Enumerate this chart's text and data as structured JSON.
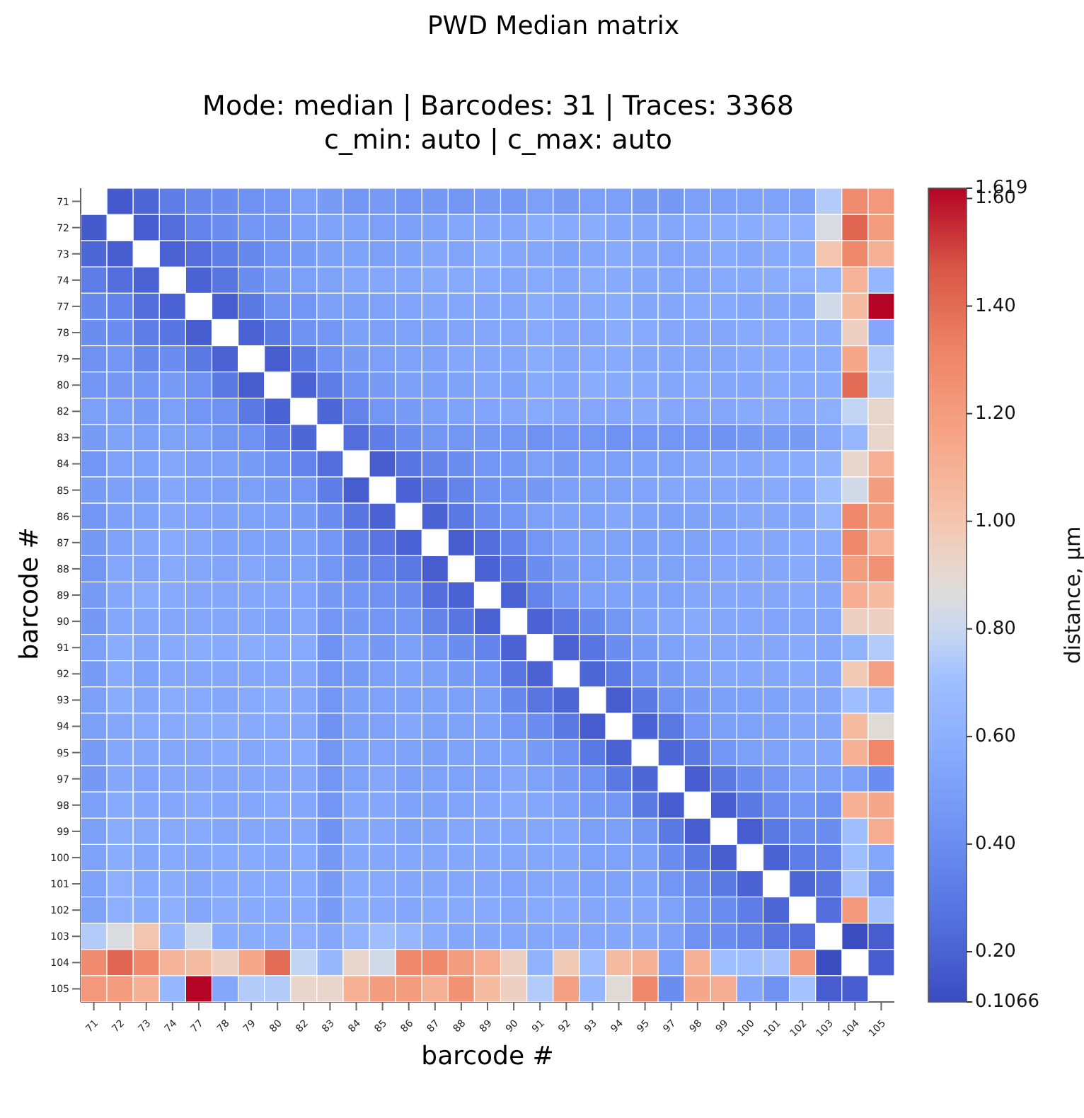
{
  "chart_data": {
    "type": "heatmap",
    "title": "PWD Median matrix",
    "subtitle": "Mode: median | Barcodes: 31 | Traces: 3368\nc_min: auto | c_max: auto",
    "xlabel": "barcode #",
    "ylabel": "barcode #",
    "clabel": "distance, µm",
    "categories": [
      "71",
      "72",
      "73",
      "74",
      "77",
      "78",
      "79",
      "80",
      "82",
      "83",
      "84",
      "85",
      "86",
      "87",
      "88",
      "89",
      "90",
      "91",
      "92",
      "93",
      "94",
      "95",
      "97",
      "98",
      "99",
      "100",
      "101",
      "102",
      "103",
      "104",
      "105"
    ],
    "y_categories": [
      "71",
      "72",
      "73",
      "74",
      "77",
      "78",
      "79",
      "80",
      "82",
      "83",
      "84",
      "85",
      "86",
      "87",
      "88",
      "89",
      "90",
      "91",
      "92",
      "93",
      "94",
      "95",
      "97",
      "98",
      "99",
      "100",
      "101",
      "102",
      "103",
      "104",
      "105"
    ],
    "clim": [
      0.1066,
      1.619
    ],
    "cticks": [
      {
        "value": 0.1066,
        "label": "0.1066"
      },
      {
        "value": 0.2,
        "label": "0.20"
      },
      {
        "value": 0.4,
        "label": "0.40"
      },
      {
        "value": 0.6,
        "label": "0.60"
      },
      {
        "value": 0.8,
        "label": "0.80"
      },
      {
        "value": 1.0,
        "label": "1.00"
      },
      {
        "value": 1.2,
        "label": "1.20"
      },
      {
        "value": 1.4,
        "label": "1.40"
      },
      {
        "value": 1.6,
        "label": "1.60"
      },
      {
        "value": 1.619,
        "label": "1.619"
      }
    ],
    "cells": [
      [
        null,
        0.17,
        0.22,
        0.32,
        0.38,
        0.4,
        0.42,
        0.45,
        0.5,
        0.48,
        0.45,
        0.48,
        0.45,
        0.47,
        0.45,
        0.48,
        0.47,
        0.5,
        0.48,
        0.5,
        0.5,
        0.48,
        0.47,
        0.5,
        0.5,
        0.52,
        0.52,
        0.52,
        0.75,
        1.28,
        1.22
      ],
      [
        0.17,
        null,
        0.18,
        0.25,
        0.35,
        0.4,
        0.45,
        0.47,
        0.5,
        0.52,
        0.52,
        0.5,
        0.5,
        0.52,
        0.55,
        0.55,
        0.55,
        0.58,
        0.57,
        0.58,
        0.55,
        0.55,
        0.55,
        0.57,
        0.58,
        0.58,
        0.6,
        0.6,
        0.85,
        1.42,
        1.2
      ],
      [
        0.22,
        0.18,
        null,
        0.2,
        0.25,
        0.32,
        0.38,
        0.45,
        0.48,
        0.5,
        0.52,
        0.5,
        0.52,
        0.55,
        0.53,
        0.58,
        0.55,
        0.55,
        0.52,
        0.55,
        0.57,
        0.55,
        0.53,
        0.55,
        0.57,
        0.55,
        0.57,
        0.58,
        1.0,
        1.3,
        1.1
      ],
      [
        0.32,
        0.25,
        0.2,
        null,
        0.2,
        0.28,
        0.4,
        0.48,
        0.5,
        0.52,
        0.55,
        0.55,
        0.55,
        0.57,
        0.57,
        0.57,
        0.55,
        0.57,
        0.55,
        0.58,
        0.57,
        0.55,
        0.55,
        0.55,
        0.57,
        0.57,
        0.58,
        0.6,
        0.65,
        1.08,
        0.65
      ],
      [
        0.38,
        0.35,
        0.25,
        0.2,
        null,
        0.18,
        0.3,
        0.42,
        0.45,
        0.5,
        0.5,
        0.52,
        0.53,
        0.55,
        0.55,
        0.55,
        0.55,
        0.58,
        0.55,
        0.57,
        0.58,
        0.55,
        0.55,
        0.57,
        0.57,
        0.55,
        0.55,
        0.55,
        0.82,
        1.05,
        1.619
      ],
      [
        0.4,
        0.4,
        0.32,
        0.28,
        0.18,
        null,
        0.2,
        0.3,
        0.42,
        0.45,
        0.5,
        0.5,
        0.52,
        0.52,
        0.53,
        0.55,
        0.55,
        0.57,
        0.55,
        0.55,
        0.58,
        0.57,
        0.55,
        0.55,
        0.55,
        0.57,
        0.57,
        0.58,
        0.58,
        0.95,
        0.55
      ],
      [
        0.42,
        0.45,
        0.38,
        0.4,
        0.3,
        0.2,
        null,
        0.18,
        0.3,
        0.42,
        0.48,
        0.5,
        0.52,
        0.52,
        0.55,
        0.55,
        0.55,
        0.58,
        0.55,
        0.57,
        0.57,
        0.55,
        0.55,
        0.55,
        0.55,
        0.57,
        0.57,
        0.57,
        0.58,
        1.15,
        0.75
      ],
      [
        0.45,
        0.47,
        0.45,
        0.48,
        0.42,
        0.3,
        0.18,
        null,
        0.2,
        0.32,
        0.42,
        0.48,
        0.5,
        0.5,
        0.52,
        0.55,
        0.52,
        0.57,
        0.55,
        0.58,
        0.57,
        0.57,
        0.55,
        0.57,
        0.55,
        0.55,
        0.57,
        0.57,
        0.58,
        1.4,
        0.75
      ],
      [
        0.5,
        0.5,
        0.48,
        0.5,
        0.45,
        0.42,
        0.3,
        0.2,
        null,
        0.22,
        0.35,
        0.45,
        0.48,
        0.5,
        0.52,
        0.53,
        0.55,
        0.57,
        0.55,
        0.55,
        0.55,
        0.57,
        0.55,
        0.55,
        0.55,
        0.57,
        0.57,
        0.57,
        0.6,
        0.78,
        0.92
      ],
      [
        0.48,
        0.52,
        0.5,
        0.52,
        0.5,
        0.45,
        0.42,
        0.32,
        0.22,
        null,
        0.25,
        0.32,
        0.4,
        0.45,
        0.45,
        0.47,
        0.45,
        0.42,
        0.45,
        0.45,
        0.42,
        0.45,
        0.45,
        0.45,
        0.43,
        0.47,
        0.48,
        0.48,
        0.55,
        0.65,
        0.92
      ],
      [
        0.45,
        0.52,
        0.52,
        0.55,
        0.5,
        0.5,
        0.48,
        0.42,
        0.35,
        0.25,
        null,
        0.18,
        0.28,
        0.35,
        0.4,
        0.45,
        0.47,
        0.5,
        0.48,
        0.5,
        0.5,
        0.52,
        0.52,
        0.55,
        0.55,
        0.55,
        0.57,
        0.58,
        0.62,
        0.92,
        1.1
      ],
      [
        0.48,
        0.5,
        0.5,
        0.55,
        0.52,
        0.5,
        0.5,
        0.48,
        0.45,
        0.32,
        0.18,
        null,
        0.2,
        0.28,
        0.35,
        0.42,
        0.45,
        0.47,
        0.5,
        0.52,
        0.52,
        0.53,
        0.55,
        0.55,
        0.55,
        0.55,
        0.57,
        0.57,
        0.7,
        0.82,
        1.2
      ],
      [
        0.45,
        0.5,
        0.52,
        0.55,
        0.53,
        0.52,
        0.52,
        0.5,
        0.48,
        0.4,
        0.28,
        0.2,
        null,
        0.2,
        0.3,
        0.4,
        0.45,
        0.5,
        0.52,
        0.52,
        0.55,
        0.52,
        0.5,
        0.52,
        0.52,
        0.55,
        0.55,
        0.55,
        0.65,
        1.3,
        1.2
      ],
      [
        0.47,
        0.52,
        0.55,
        0.57,
        0.55,
        0.52,
        0.52,
        0.5,
        0.5,
        0.45,
        0.35,
        0.28,
        0.2,
        null,
        0.18,
        0.25,
        0.35,
        0.45,
        0.5,
        0.52,
        0.52,
        0.5,
        0.52,
        0.52,
        0.53,
        0.55,
        0.55,
        0.57,
        0.58,
        1.3,
        1.1
      ],
      [
        0.45,
        0.55,
        0.53,
        0.57,
        0.55,
        0.53,
        0.55,
        0.52,
        0.52,
        0.45,
        0.4,
        0.35,
        0.3,
        0.18,
        null,
        0.2,
        0.28,
        0.4,
        0.48,
        0.5,
        0.52,
        0.52,
        0.52,
        0.53,
        0.55,
        0.55,
        0.55,
        0.57,
        0.55,
        1.2,
        1.25
      ],
      [
        0.48,
        0.55,
        0.58,
        0.57,
        0.55,
        0.55,
        0.55,
        0.55,
        0.53,
        0.47,
        0.45,
        0.42,
        0.4,
        0.25,
        0.2,
        null,
        0.2,
        0.35,
        0.45,
        0.5,
        0.52,
        0.52,
        0.52,
        0.55,
        0.55,
        0.55,
        0.55,
        0.57,
        0.55,
        1.12,
        1.05
      ],
      [
        0.47,
        0.55,
        0.55,
        0.55,
        0.55,
        0.55,
        0.55,
        0.52,
        0.55,
        0.45,
        0.47,
        0.45,
        0.45,
        0.35,
        0.28,
        0.2,
        null,
        0.2,
        0.28,
        0.38,
        0.45,
        0.52,
        0.55,
        0.57,
        0.55,
        0.55,
        0.53,
        0.55,
        0.55,
        0.95,
        0.95
      ],
      [
        0.5,
        0.58,
        0.55,
        0.57,
        0.58,
        0.57,
        0.58,
        0.57,
        0.57,
        0.42,
        0.5,
        0.47,
        0.5,
        0.45,
        0.4,
        0.35,
        0.2,
        null,
        0.2,
        0.28,
        0.4,
        0.48,
        0.52,
        0.55,
        0.55,
        0.55,
        0.55,
        0.57,
        0.55,
        0.62,
        0.75
      ],
      [
        0.48,
        0.57,
        0.52,
        0.55,
        0.55,
        0.55,
        0.55,
        0.55,
        0.55,
        0.45,
        0.48,
        0.5,
        0.52,
        0.5,
        0.48,
        0.45,
        0.28,
        0.2,
        null,
        0.22,
        0.3,
        0.42,
        0.48,
        0.52,
        0.55,
        0.55,
        0.55,
        0.57,
        0.55,
        0.98,
        1.18
      ],
      [
        0.5,
        0.58,
        0.55,
        0.58,
        0.57,
        0.55,
        0.57,
        0.58,
        0.55,
        0.45,
        0.5,
        0.52,
        0.52,
        0.52,
        0.5,
        0.5,
        0.38,
        0.28,
        0.22,
        null,
        0.18,
        0.3,
        0.42,
        0.48,
        0.5,
        0.52,
        0.52,
        0.55,
        0.55,
        0.7,
        0.65
      ],
      [
        0.5,
        0.55,
        0.57,
        0.57,
        0.58,
        0.58,
        0.57,
        0.57,
        0.55,
        0.42,
        0.5,
        0.52,
        0.55,
        0.52,
        0.52,
        0.52,
        0.45,
        0.4,
        0.3,
        0.18,
        null,
        0.2,
        0.3,
        0.45,
        0.5,
        0.52,
        0.52,
        0.55,
        0.55,
        1.05,
        0.88
      ],
      [
        0.48,
        0.55,
        0.55,
        0.55,
        0.55,
        0.57,
        0.55,
        0.57,
        0.57,
        0.45,
        0.52,
        0.53,
        0.52,
        0.5,
        0.52,
        0.52,
        0.52,
        0.48,
        0.42,
        0.3,
        0.2,
        null,
        0.22,
        0.3,
        0.45,
        0.5,
        0.52,
        0.55,
        0.55,
        1.1,
        1.3
      ],
      [
        0.47,
        0.55,
        0.53,
        0.55,
        0.55,
        0.55,
        0.55,
        0.55,
        0.55,
        0.45,
        0.52,
        0.55,
        0.5,
        0.52,
        0.52,
        0.52,
        0.55,
        0.52,
        0.48,
        0.42,
        0.3,
        0.22,
        null,
        0.18,
        0.3,
        0.4,
        0.45,
        0.52,
        0.5,
        0.5,
        0.4
      ],
      [
        0.5,
        0.57,
        0.55,
        0.55,
        0.57,
        0.55,
        0.55,
        0.57,
        0.55,
        0.45,
        0.55,
        0.55,
        0.52,
        0.52,
        0.53,
        0.55,
        0.57,
        0.55,
        0.52,
        0.48,
        0.45,
        0.3,
        0.18,
        null,
        0.18,
        0.3,
        0.4,
        0.45,
        0.42,
        1.1,
        1.15
      ],
      [
        0.5,
        0.58,
        0.57,
        0.57,
        0.57,
        0.55,
        0.55,
        0.55,
        0.55,
        0.43,
        0.55,
        0.55,
        0.52,
        0.53,
        0.55,
        0.55,
        0.55,
        0.55,
        0.55,
        0.5,
        0.5,
        0.45,
        0.3,
        0.18,
        null,
        0.18,
        0.3,
        0.4,
        0.4,
        0.7,
        1.12
      ],
      [
        0.52,
        0.58,
        0.55,
        0.57,
        0.55,
        0.57,
        0.57,
        0.55,
        0.57,
        0.47,
        0.55,
        0.55,
        0.55,
        0.55,
        0.55,
        0.55,
        0.55,
        0.55,
        0.55,
        0.52,
        0.52,
        0.5,
        0.4,
        0.3,
        0.18,
        null,
        0.2,
        0.32,
        0.35,
        0.7,
        0.55
      ],
      [
        0.52,
        0.6,
        0.57,
        0.58,
        0.55,
        0.57,
        0.57,
        0.57,
        0.57,
        0.48,
        0.57,
        0.57,
        0.55,
        0.55,
        0.55,
        0.55,
        0.53,
        0.55,
        0.55,
        0.52,
        0.52,
        0.52,
        0.45,
        0.4,
        0.3,
        0.2,
        null,
        0.22,
        0.28,
        0.72,
        0.42
      ],
      [
        0.52,
        0.6,
        0.58,
        0.6,
        0.55,
        0.58,
        0.57,
        0.57,
        0.57,
        0.48,
        0.58,
        0.57,
        0.55,
        0.57,
        0.57,
        0.57,
        0.55,
        0.57,
        0.57,
        0.55,
        0.55,
        0.55,
        0.52,
        0.45,
        0.4,
        0.32,
        0.22,
        null,
        0.25,
        1.22,
        0.72
      ],
      [
        0.75,
        0.85,
        1.0,
        0.65,
        0.82,
        0.58,
        0.58,
        0.58,
        0.6,
        0.55,
        0.62,
        0.7,
        0.65,
        0.58,
        0.55,
        0.55,
        0.55,
        0.55,
        0.55,
        0.55,
        0.55,
        0.55,
        0.5,
        0.42,
        0.4,
        0.35,
        0.28,
        0.25,
        null,
        0.1066,
        0.18
      ],
      [
        1.28,
        1.42,
        1.3,
        1.08,
        1.05,
        0.95,
        1.15,
        1.4,
        0.78,
        0.65,
        0.92,
        0.82,
        1.3,
        1.3,
        1.2,
        1.12,
        0.95,
        0.62,
        0.98,
        0.7,
        1.05,
        1.1,
        0.5,
        1.1,
        0.7,
        0.7,
        0.72,
        1.22,
        0.1066,
        null,
        0.18
      ],
      [
        1.22,
        1.2,
        1.1,
        0.65,
        1.619,
        0.55,
        0.75,
        0.75,
        0.92,
        0.92,
        1.1,
        1.2,
        1.2,
        1.1,
        1.25,
        1.05,
        0.95,
        0.75,
        1.18,
        0.65,
        0.88,
        1.3,
        0.4,
        1.15,
        1.12,
        0.55,
        0.42,
        0.72,
        0.18,
        0.18,
        null
      ]
    ]
  }
}
